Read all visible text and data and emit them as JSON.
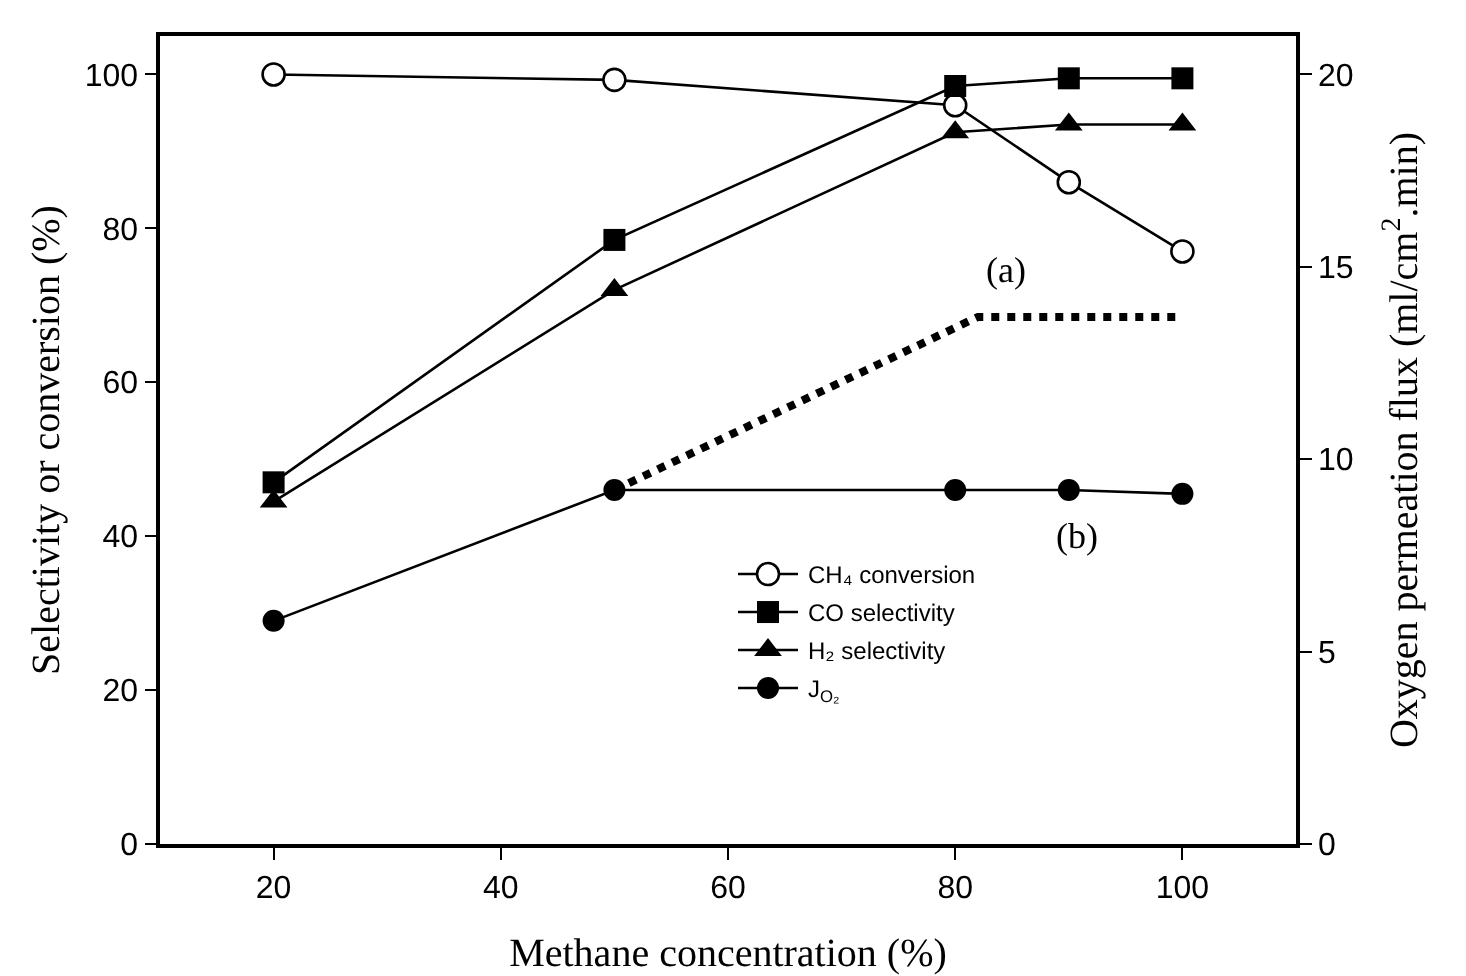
{
  "chart_data": {
    "type": "line",
    "xlabel": "Methane concentration (%)",
    "ylabel": "Selectivity or conversion (%)",
    "y2label": "Oxygen permeation flux (ml/cm$^{2}$.min)",
    "x": [
      20,
      50,
      80,
      90,
      100
    ],
    "series": [
      {
        "name": "CH₄ conversion",
        "color": "#000000",
        "marker": "circle",
        "values": [
          100,
          99.3,
          96,
          86,
          77
        ]
      },
      {
        "name": "CO selectivity",
        "color": "#000000",
        "marker": "square",
        "values": [
          47,
          78.5,
          98.5,
          99.5,
          99.5
        ]
      },
      {
        "name": "H₂ selectivity",
        "color": "#000000",
        "marker": "triangle",
        "values": [
          44.5,
          72,
          92.5,
          93.5,
          93.5
        ]
      },
      {
        "name": "J$_{O₂}$",
        "color": "#000000",
        "marker": "circle",
        "axis": "y2",
        "values": [
          5.8,
          9.2,
          9.2,
          9.2,
          9.1
        ]
      },
      {
        "color": "#000000",
        "marker": "none",
        "line_style": "dotted",
        "axis": "y2",
        "x": [
          50,
          82,
          100
        ],
        "values": [
          9.2,
          13.7,
          13.7
        ]
      }
    ],
    "annotations": [
      "(a)",
      "(b)"
    ],
    "xlim": [
      10,
      110
    ],
    "xticks": [
      20,
      40,
      60,
      80,
      100
    ],
    "ylim": [
      0,
      105
    ],
    "yticks": [
      0,
      20,
      40,
      60,
      80,
      100
    ],
    "y2lim": [
      0,
      21
    ],
    "y2ticks": [
      0,
      5,
      10,
      15,
      20
    ],
    "grid": false,
    "legend": "center"
  }
}
